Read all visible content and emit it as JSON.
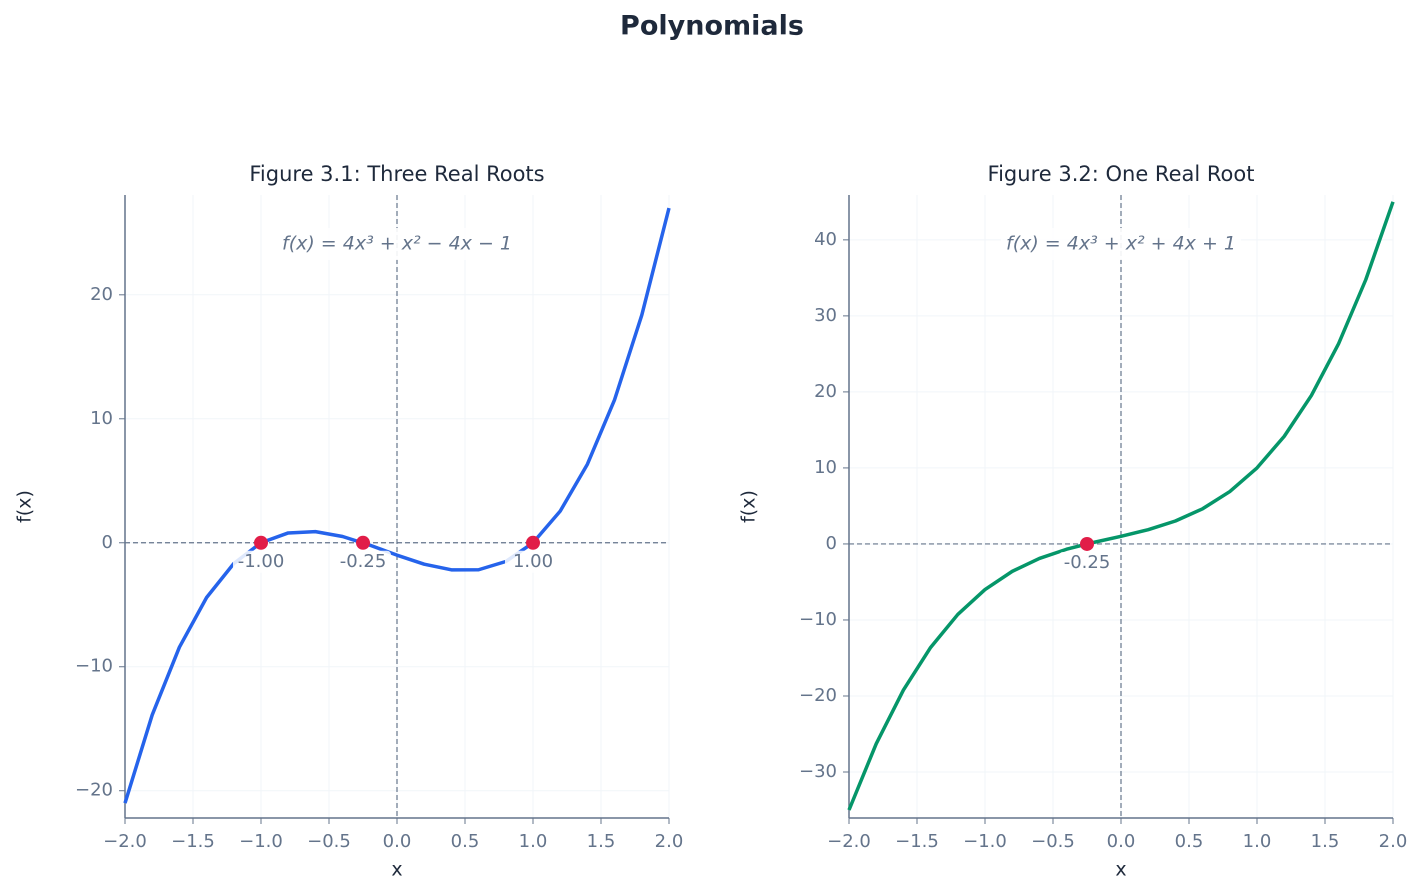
{
  "title": "Polynomials",
  "chart_data": [
    {
      "type": "line",
      "title": "Figure 3.1: Three Real Roots",
      "annotation": "f(x) = 4x³ + x² − 4x − 1",
      "x_label": "x",
      "y_label": "f(x)",
      "grid": true,
      "x": [
        -2,
        -1.8,
        -1.6,
        -1.4,
        -1.2,
        -1,
        -0.8,
        -0.6,
        -0.4,
        -0.2,
        0,
        0.2,
        0.4,
        0.6,
        0.8,
        1,
        1.2,
        1.4,
        1.6,
        1.8,
        2
      ],
      "series": [
        {
          "color": "#2563eb",
          "values": [
            -21,
            -13.888,
            -8.424,
            -4.416,
            -1.672,
            0,
            0.792,
            0.896,
            0.504,
            -0.192,
            -1,
            -1.728,
            -2.184,
            -2.176,
            -1.512,
            0,
            2.552,
            6.336,
            11.544,
            18.368,
            27
          ]
        }
      ],
      "roots": {
        "color": "#e11d48",
        "x": [
          -1,
          -0.25,
          1
        ],
        "values": [
          0,
          0,
          0
        ],
        "value_labels": [
          "-1.00",
          "-0.25",
          "1.00"
        ]
      },
      "xlim": [
        -2,
        2
      ],
      "xticks": [
        {
          "value": -2,
          "label": "−2.0"
        },
        {
          "value": -1.5,
          "label": "−1.5"
        },
        {
          "value": -1,
          "label": "−1.0"
        },
        {
          "value": -0.5,
          "label": "−0.5"
        },
        {
          "value": 0,
          "label": "0.0"
        },
        {
          "value": 0.5,
          "label": "0.5"
        },
        {
          "value": 1,
          "label": "1.0"
        },
        {
          "value": 1.5,
          "label": "1.5"
        },
        {
          "value": 2,
          "label": "2.0"
        }
      ],
      "ylim": [
        -22.2,
        28.05
      ],
      "yticks": [
        {
          "value": -20,
          "label": "−20"
        },
        {
          "value": -10,
          "label": "−10"
        },
        0,
        10,
        20
      ]
    },
    {
      "type": "line",
      "title": "Figure 3.2: One Real Root",
      "annotation": "f(x) = 4x³ + x² + 4x + 1",
      "x_label": "x",
      "y_label": "f(x)",
      "grid": true,
      "x": [
        -2,
        -1.8,
        -1.6,
        -1.4,
        -1.2,
        -1,
        -0.8,
        -0.6,
        -0.4,
        -0.2,
        0,
        0.2,
        0.4,
        0.6,
        0.8,
        1,
        1.2,
        1.4,
        1.6,
        1.8,
        2
      ],
      "series": [
        {
          "color": "#059669",
          "values": [
            -35,
            -26.288,
            -19.224,
            -13.616,
            -9.272,
            -6,
            -3.608,
            -1.904,
            -0.696,
            0.208,
            1,
            1.872,
            3.016,
            4.624,
            6.888,
            10,
            14.152,
            19.536,
            26.344,
            34.768,
            45
          ]
        }
      ],
      "roots": {
        "color": "#e11d48",
        "x": [
          -0.25
        ],
        "values": [
          0
        ],
        "value_labels": [
          "-0.25"
        ]
      },
      "xlim": [
        -2,
        2
      ],
      "xticks": [
        {
          "value": -2,
          "label": "−2.0"
        },
        {
          "value": -1.5,
          "label": "−1.5"
        },
        {
          "value": -1,
          "label": "−1.0"
        },
        {
          "value": -0.5,
          "label": "−0.5"
        },
        {
          "value": 0,
          "label": "0.0"
        },
        {
          "value": 0.5,
          "label": "0.5"
        },
        {
          "value": 1,
          "label": "1.0"
        },
        {
          "value": 1.5,
          "label": "1.5"
        },
        {
          "value": 2,
          "label": "2.0"
        }
      ],
      "ylim": [
        -36.05,
        45.9
      ],
      "yticks": [
        {
          "value": -30,
          "label": "−30"
        },
        {
          "value": -20,
          "label": "−20"
        },
        {
          "value": -10,
          "label": "−10"
        },
        0,
        10,
        20,
        30,
        40
      ]
    }
  ]
}
